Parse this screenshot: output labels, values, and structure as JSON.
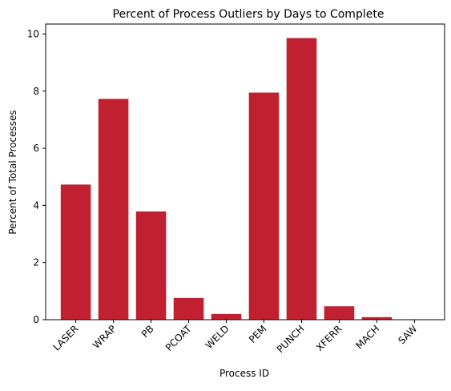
{
  "chart_data": {
    "type": "bar",
    "title": "Percent of Process Outliers by Days to Complete",
    "xlabel": "Process ID",
    "ylabel": "Percent of Total Processes",
    "categories": [
      "LASER",
      "WRAP",
      "PB",
      "PCOAT",
      "WELD",
      "PEM",
      "PUNCH",
      "XFERR",
      "MACH",
      "SAW"
    ],
    "values": [
      4.73,
      7.73,
      3.79,
      0.76,
      0.2,
      7.95,
      9.86,
      0.47,
      0.09,
      0.0
    ],
    "ylim": [
      0,
      10.35
    ],
    "yticks": [
      0,
      2,
      4,
      6,
      8,
      10
    ],
    "grid": false,
    "colors": {
      "bar": "#c02030"
    }
  }
}
